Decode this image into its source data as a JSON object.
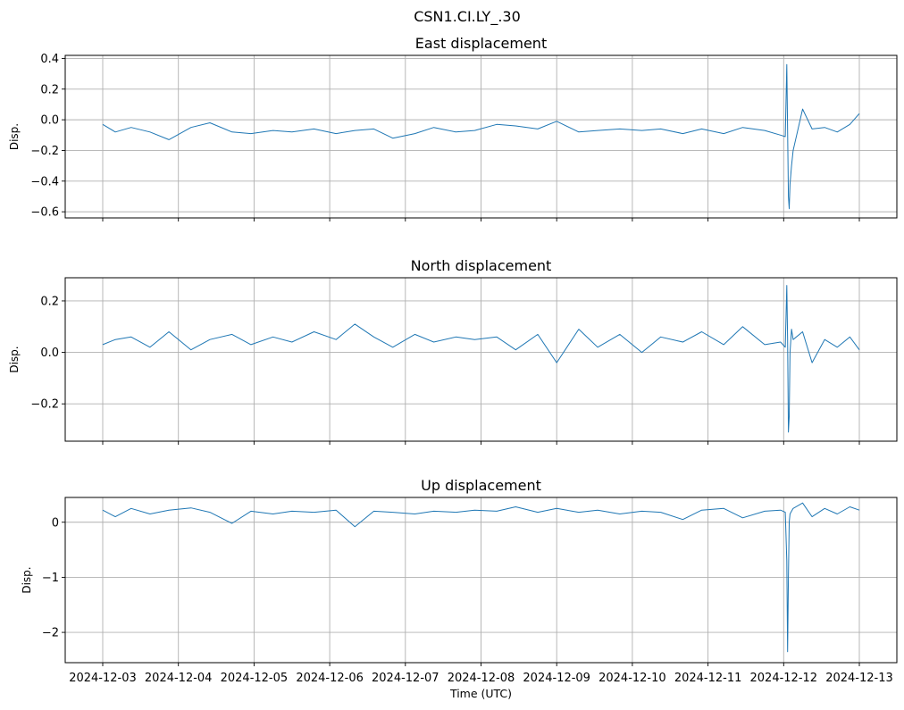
{
  "figure": {
    "title": "CSN1.CI.LY_.30"
  },
  "chart_data": [
    {
      "type": "line",
      "title": "East displacement",
      "ylabel": "Disp.",
      "xlabel": "",
      "ylim": [
        -0.64,
        0.42
      ],
      "yticks": [
        0.4,
        0.2,
        0.0,
        -0.2,
        -0.4,
        -0.6
      ],
      "ytick_labels": [
        "0.4",
        "0.2",
        "0.0",
        "−0.2",
        "−0.4",
        "−0.6"
      ],
      "grid": true,
      "xlim": [
        "2024-12-03",
        "2024-12-13"
      ],
      "series_color": "#1f77b4",
      "x": [
        "2024-12-03 00:00",
        "2024-12-03 04:00",
        "2024-12-03 09:00",
        "2024-12-03 15:00",
        "2024-12-03 21:00",
        "2024-12-04 04:00",
        "2024-12-04 10:00",
        "2024-12-04 17:00",
        "2024-12-04 23:00",
        "2024-12-05 06:00",
        "2024-12-05 12:00",
        "2024-12-05 19:00",
        "2024-12-06 02:00",
        "2024-12-06 08:00",
        "2024-12-06 14:00",
        "2024-12-06 20:00",
        "2024-12-07 03:00",
        "2024-12-07 09:00",
        "2024-12-07 16:00",
        "2024-12-07 22:00",
        "2024-12-08 05:00",
        "2024-12-08 11:00",
        "2024-12-08 18:00",
        "2024-12-09 00:00",
        "2024-12-09 07:00",
        "2024-12-09 13:00",
        "2024-12-09 20:00",
        "2024-12-10 03:00",
        "2024-12-10 09:00",
        "2024-12-10 16:00",
        "2024-12-10 22:00",
        "2024-12-11 05:00",
        "2024-12-11 11:00",
        "2024-12-11 18:00",
        "2024-12-11 23:00",
        "2024-12-12 00:30",
        "2024-12-12 01:00",
        "2024-12-12 01:15",
        "2024-12-12 01:30",
        "2024-12-12 01:45",
        "2024-12-12 02:00",
        "2024-12-12 02:30",
        "2024-12-12 03:00",
        "2024-12-12 06:00",
        "2024-12-12 09:00",
        "2024-12-12 13:00",
        "2024-12-12 17:00",
        "2024-12-12 21:00",
        "2024-12-13 00:00"
      ],
      "values": [
        -0.03,
        -0.08,
        -0.05,
        -0.08,
        -0.13,
        -0.05,
        -0.02,
        -0.08,
        -0.09,
        -0.07,
        -0.08,
        -0.06,
        -0.09,
        -0.07,
        -0.06,
        -0.12,
        -0.09,
        -0.05,
        -0.08,
        -0.07,
        -0.03,
        -0.04,
        -0.06,
        -0.01,
        -0.08,
        -0.07,
        -0.06,
        -0.07,
        -0.06,
        -0.09,
        -0.06,
        -0.09,
        -0.05,
        -0.07,
        -0.1,
        -0.11,
        0.36,
        -0.07,
        -0.5,
        -0.58,
        -0.42,
        -0.3,
        -0.2,
        0.07,
        -0.06,
        -0.05,
        -0.08,
        -0.03,
        0.04
      ]
    },
    {
      "type": "line",
      "title": "North displacement",
      "ylabel": "Disp.",
      "xlabel": "",
      "ylim": [
        -0.345,
        0.29
      ],
      "yticks": [
        0.2,
        0.0,
        -0.2
      ],
      "ytick_labels": [
        "0.2",
        "0.0",
        "−0.2"
      ],
      "grid": true,
      "xlim": [
        "2024-12-03",
        "2024-12-13"
      ],
      "series_color": "#1f77b4",
      "x": [
        "2024-12-03 00:00",
        "2024-12-03 04:00",
        "2024-12-03 09:00",
        "2024-12-03 15:00",
        "2024-12-03 21:00",
        "2024-12-04 04:00",
        "2024-12-04 10:00",
        "2024-12-04 17:00",
        "2024-12-04 23:00",
        "2024-12-05 06:00",
        "2024-12-05 12:00",
        "2024-12-05 19:00",
        "2024-12-06 02:00",
        "2024-12-06 08:00",
        "2024-12-06 14:00",
        "2024-12-06 20:00",
        "2024-12-07 03:00",
        "2024-12-07 09:00",
        "2024-12-07 16:00",
        "2024-12-07 22:00",
        "2024-12-08 05:00",
        "2024-12-08 11:00",
        "2024-12-08 18:00",
        "2024-12-09 00:00",
        "2024-12-09 07:00",
        "2024-12-09 13:00",
        "2024-12-09 20:00",
        "2024-12-10 03:00",
        "2024-12-10 09:00",
        "2024-12-10 16:00",
        "2024-12-10 22:00",
        "2024-12-11 05:00",
        "2024-12-11 11:00",
        "2024-12-11 18:00",
        "2024-12-11 23:00",
        "2024-12-12 00:30",
        "2024-12-12 01:00",
        "2024-12-12 01:15",
        "2024-12-12 01:30",
        "2024-12-12 01:45",
        "2024-12-12 02:00",
        "2024-12-12 02:30",
        "2024-12-12 03:00",
        "2024-12-12 06:00",
        "2024-12-12 09:00",
        "2024-12-12 13:00",
        "2024-12-12 17:00",
        "2024-12-12 21:00",
        "2024-12-13 00:00"
      ],
      "values": [
        0.03,
        0.05,
        0.06,
        0.02,
        0.08,
        0.01,
        0.05,
        0.07,
        0.03,
        0.06,
        0.04,
        0.08,
        0.05,
        0.11,
        0.06,
        0.02,
        0.07,
        0.04,
        0.06,
        0.05,
        0.06,
        0.01,
        0.07,
        -0.04,
        0.09,
        0.02,
        0.07,
        0.0,
        0.06,
        0.04,
        0.08,
        0.03,
        0.1,
        0.03,
        0.04,
        0.02,
        0.26,
        0.05,
        -0.31,
        -0.25,
        0.0,
        0.09,
        0.05,
        0.08,
        -0.04,
        0.05,
        0.02,
        0.06,
        0.01
      ]
    },
    {
      "type": "line",
      "title": "Up displacement",
      "ylabel": "Disp.",
      "xlabel": "Time (UTC)",
      "ylim": [
        -2.55,
        0.45
      ],
      "yticks": [
        0,
        -1,
        -2
      ],
      "ytick_labels": [
        "0",
        "−1",
        "−2"
      ],
      "grid": true,
      "xlim": [
        "2024-12-03",
        "2024-12-13"
      ],
      "xticks": [
        "2024-12-03",
        "2024-12-04",
        "2024-12-05",
        "2024-12-06",
        "2024-12-07",
        "2024-12-08",
        "2024-12-09",
        "2024-12-10",
        "2024-12-11",
        "2024-12-12",
        "2024-12-13"
      ],
      "series_color": "#1f77b4",
      "x": [
        "2024-12-03 00:00",
        "2024-12-03 04:00",
        "2024-12-03 09:00",
        "2024-12-03 15:00",
        "2024-12-03 21:00",
        "2024-12-04 04:00",
        "2024-12-04 10:00",
        "2024-12-04 17:00",
        "2024-12-04 23:00",
        "2024-12-05 06:00",
        "2024-12-05 12:00",
        "2024-12-05 19:00",
        "2024-12-06 02:00",
        "2024-12-06 08:00",
        "2024-12-06 14:00",
        "2024-12-06 20:00",
        "2024-12-07 03:00",
        "2024-12-07 09:00",
        "2024-12-07 16:00",
        "2024-12-07 22:00",
        "2024-12-08 05:00",
        "2024-12-08 11:00",
        "2024-12-08 18:00",
        "2024-12-09 00:00",
        "2024-12-09 07:00",
        "2024-12-09 13:00",
        "2024-12-09 20:00",
        "2024-12-10 03:00",
        "2024-12-10 09:00",
        "2024-12-10 16:00",
        "2024-12-10 22:00",
        "2024-12-11 05:00",
        "2024-12-11 11:00",
        "2024-12-11 18:00",
        "2024-12-11 23:00",
        "2024-12-12 00:30",
        "2024-12-12 01:00",
        "2024-12-12 01:15",
        "2024-12-12 01:30",
        "2024-12-12 01:45",
        "2024-12-12 02:00",
        "2024-12-12 02:30",
        "2024-12-12 03:00",
        "2024-12-12 06:00",
        "2024-12-12 09:00",
        "2024-12-12 13:00",
        "2024-12-12 17:00",
        "2024-12-12 21:00",
        "2024-12-13 00:00"
      ],
      "values": [
        0.22,
        0.1,
        0.25,
        0.15,
        0.22,
        0.26,
        0.18,
        -0.02,
        0.2,
        0.15,
        0.2,
        0.18,
        0.22,
        -0.08,
        0.2,
        0.18,
        0.15,
        0.2,
        0.18,
        0.22,
        0.2,
        0.28,
        0.18,
        0.25,
        0.18,
        0.22,
        0.15,
        0.2,
        0.18,
        0.05,
        0.22,
        0.25,
        0.08,
        0.2,
        0.22,
        0.18,
        -0.7,
        -2.35,
        -1.0,
        0.0,
        0.15,
        0.2,
        0.25,
        0.35,
        0.1,
        0.25,
        0.15,
        0.28,
        0.22
      ]
    }
  ]
}
